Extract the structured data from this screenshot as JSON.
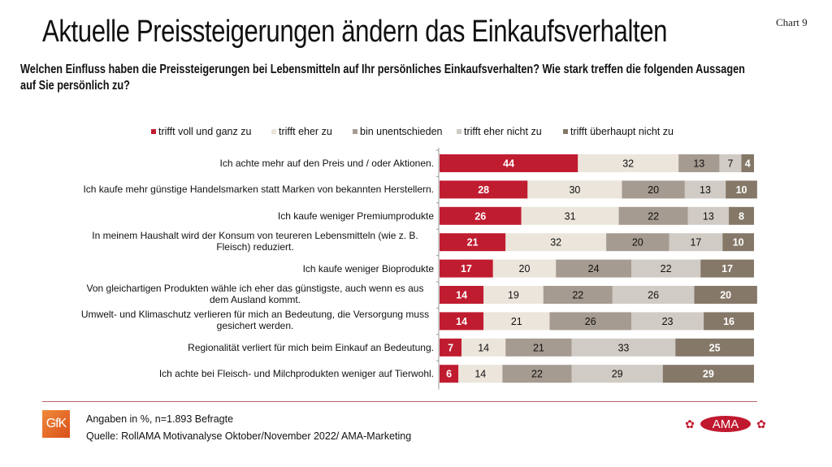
{
  "header": {
    "title": "Aktuelle Preissteigerungen ändern das Einkaufsverhalten",
    "chart_number": "Chart 9",
    "question": "Welchen Einfluss haben die Preissteigerungen bei Lebensmitteln auf Ihr persönliches Einkaufsverhalten? Wie stark treffen die folgenden Aussagen auf Sie persönlich zu?"
  },
  "chart_data": {
    "type": "bar",
    "orientation": "horizontal",
    "stacked": true,
    "title": "Aktuelle Preissteigerungen ändern das Einkaufsverhalten",
    "xlabel": "",
    "ylabel": "",
    "xlim": [
      0,
      100
    ],
    "grid": false,
    "legend_position": "top",
    "categories": [
      "Ich achte mehr auf den Preis und / oder Aktionen.",
      "Ich kaufe mehr günstige Handelsmarken statt Marken von bekannten Herstellern.",
      "Ich kaufe weniger Premiumprodukte",
      "In meinem Haushalt wird der Konsum von teureren Lebensmitteln (wie z. B. Fleisch) reduziert.",
      "Ich kaufe weniger Bioprodukte",
      "Von gleichartigen Produkten wähle ich eher das günstigste, auch wenn es aus dem Ausland kommt.",
      "Umwelt- und Klimaschutz verlieren für mich an Bedeutung, die Versorgung muss gesichert werden.",
      "Regionalität verliert für mich beim Einkauf an Bedeutung.",
      "Ich achte bei Fleisch- und Milchprodukten weniger auf Tierwohl."
    ],
    "series": [
      {
        "name": "trifft voll und ganz zu",
        "color": "#c01c30",
        "label_color": "#ffffff",
        "values": [
          44,
          28,
          26,
          21,
          17,
          14,
          14,
          7,
          6
        ]
      },
      {
        "name": "trifft eher zu",
        "color": "#ebe5db",
        "label_color": "#111111",
        "values": [
          32,
          30,
          31,
          32,
          20,
          19,
          21,
          14,
          14
        ]
      },
      {
        "name": "bin unentschieden",
        "color": "#a69b90",
        "label_color": "#111111",
        "values": [
          13,
          20,
          22,
          20,
          24,
          22,
          26,
          21,
          22
        ]
      },
      {
        "name": "trifft eher nicht zu",
        "color": "#d0cbc4",
        "label_color": "#111111",
        "values": [
          7,
          13,
          13,
          17,
          22,
          26,
          23,
          33,
          29
        ]
      },
      {
        "name": "trifft überhaupt nicht zu",
        "color": "#857868",
        "label_color": "#ffffff",
        "values": [
          4,
          10,
          8,
          10,
          17,
          20,
          16,
          25,
          29
        ]
      }
    ]
  },
  "footer": {
    "note": "Angaben in %, n=1.893 Befragte",
    "source": "Quelle: RollAMA Motivanalyse Oktober/November 2022/ AMA-Marketing",
    "logo_left": "GfK",
    "logo_right": "AMA"
  }
}
